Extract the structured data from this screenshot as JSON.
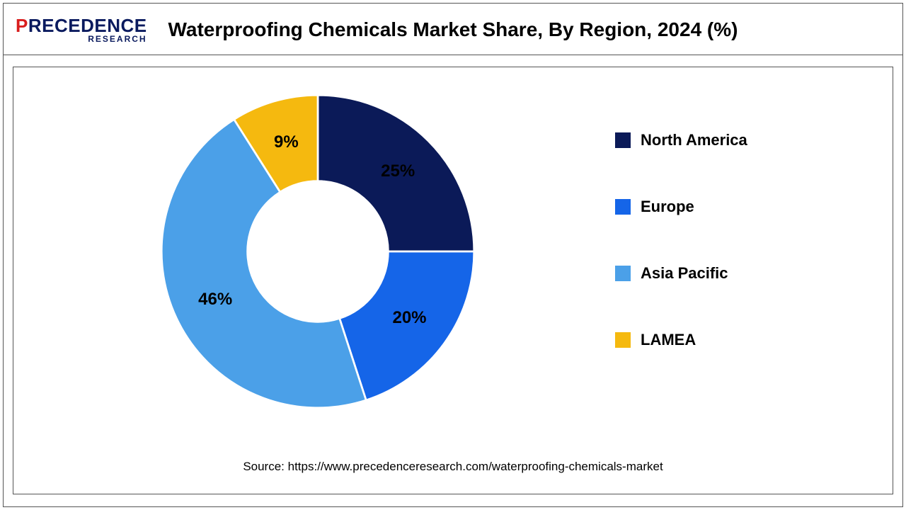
{
  "logo": {
    "line1_prefix": "P",
    "line1_rest": "RECEDENCE",
    "line2": "RESEARCH"
  },
  "title": "Waterproofing Chemicals Market Share, By Region, 2024 (%)",
  "chart": {
    "type": "donut",
    "inner_radius_ratio": 0.45,
    "background_color": "#ffffff",
    "start_angle_deg": 0,
    "label_fontsize": 24,
    "label_color": "#000000",
    "slices": [
      {
        "name": "North America",
        "value": 25,
        "label": "25%",
        "color": "#0b1a58"
      },
      {
        "name": "Europe",
        "value": 20,
        "label": "20%",
        "color": "#1565e8"
      },
      {
        "name": "Asia Pacific",
        "value": 46,
        "label": "46%",
        "color": "#4ba0e8"
      },
      {
        "name": "LAMEA",
        "value": 9,
        "label": "9%",
        "color": "#f5b90f"
      }
    ]
  },
  "legend": {
    "fontsize": 22,
    "items": [
      {
        "label": "North America",
        "color": "#0b1a58"
      },
      {
        "label": "Europe",
        "color": "#1565e8"
      },
      {
        "label": "Asia Pacific",
        "color": "#4ba0e8"
      },
      {
        "label": "LAMEA",
        "color": "#f5b90f"
      }
    ]
  },
  "source": "Source: https://www.precedenceresearch.com/waterproofing-chemicals-market"
}
